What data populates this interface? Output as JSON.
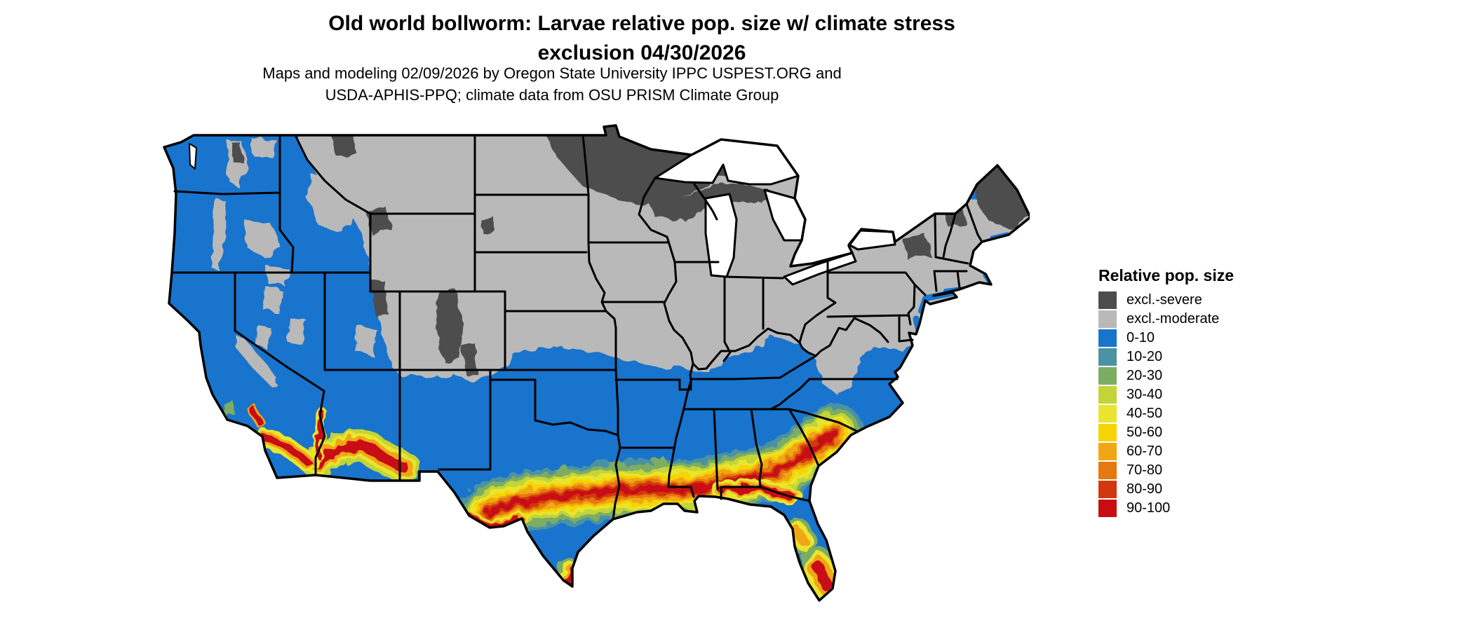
{
  "title": {
    "line1": "Old world bollworm: Larvae relative pop. size w/ climate stress",
    "line2": "exclusion 04/30/2026"
  },
  "subtitle": {
    "line1": "Maps and modeling 02/09/2026 by Oregon State University IPPC USPEST.ORG and",
    "line2": "USDA-APHIS-PPQ; climate data from OSU PRISM Climate Group"
  },
  "map": {
    "region": "Contiguous United States",
    "kind": "raster population-index map with state borders"
  },
  "legend": {
    "title": "Relative pop. size",
    "items": [
      {
        "label": "excl.-severe",
        "color": "#4d4d4d"
      },
      {
        "label": "excl.-moderate",
        "color": "#b9b9b9"
      },
      {
        "label": "0-10",
        "color": "#1874cd"
      },
      {
        "label": "10-20",
        "color": "#4a92a4"
      },
      {
        "label": "20-30",
        "color": "#7dac63"
      },
      {
        "label": "30-40",
        "color": "#c2d438"
      },
      {
        "label": "40-50",
        "color": "#e9e52e"
      },
      {
        "label": "50-60",
        "color": "#f7d306"
      },
      {
        "label": "60-70",
        "color": "#f0a713"
      },
      {
        "label": "70-80",
        "color": "#e5790f"
      },
      {
        "label": "80-90",
        "color": "#d2380e"
      },
      {
        "label": "90-100",
        "color": "#c80d12"
      }
    ]
  }
}
